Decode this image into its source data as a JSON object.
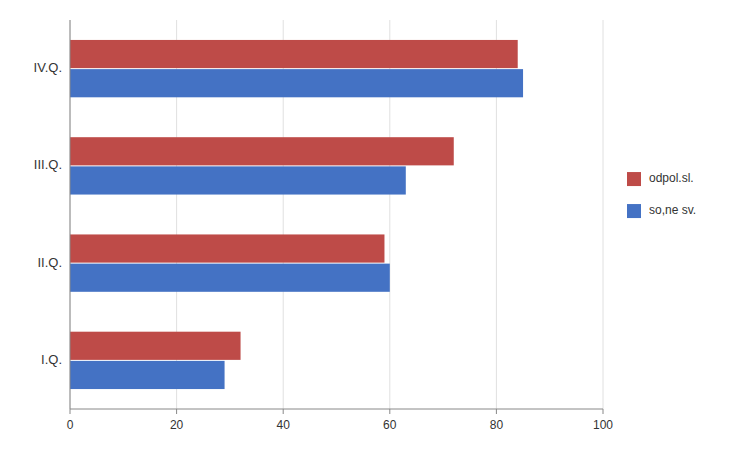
{
  "chart_data": {
    "type": "bar",
    "orientation": "horizontal",
    "categories": [
      "I.Q.",
      "II.Q.",
      "III.Q.",
      "IV.Q."
    ],
    "series": [
      {
        "name": "odpol.sl.",
        "color": "#be4b48",
        "values": [
          32,
          59,
          72,
          84
        ]
      },
      {
        "name": "so,ne sv.",
        "color": "#4472c4",
        "values": [
          29,
          60,
          63,
          85
        ]
      }
    ],
    "xlim": [
      0,
      100
    ],
    "xticks": [
      0,
      20,
      40,
      60,
      80,
      100
    ],
    "grid": true,
    "legend": "right"
  }
}
